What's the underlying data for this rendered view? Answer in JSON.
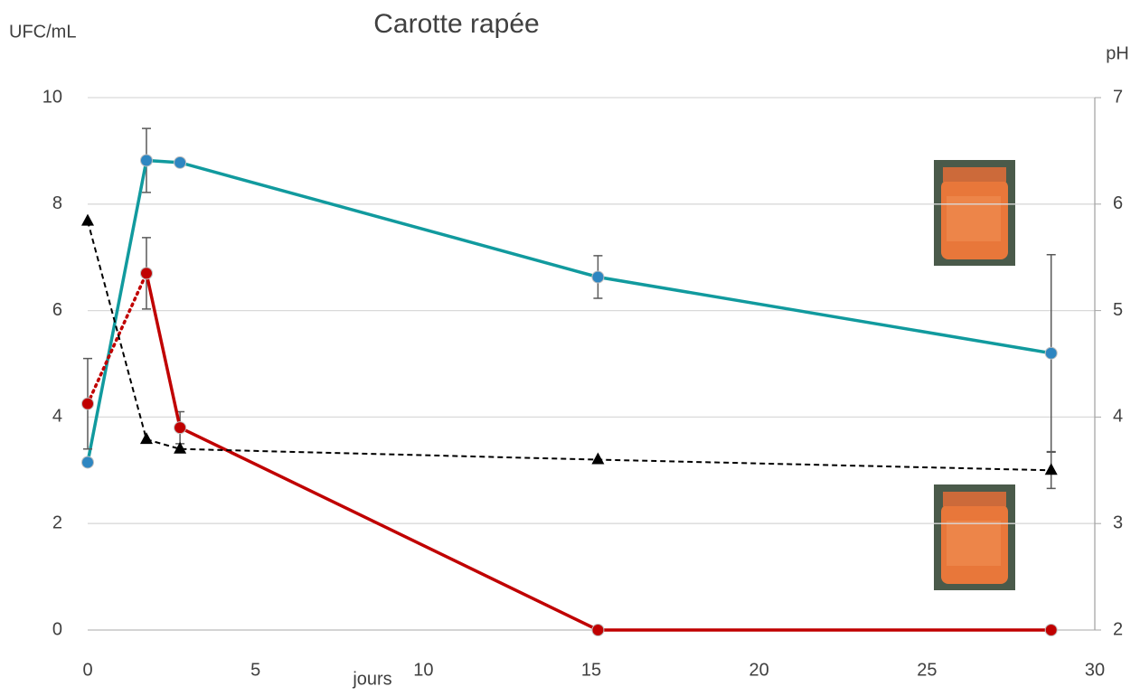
{
  "chart_data": {
    "type": "line",
    "title": "Carotte rapée",
    "y_label": "UFC/mL",
    "y2_label": "pH",
    "x_label": "jours",
    "xlim": [
      0,
      30
    ],
    "xticks": [
      0,
      5,
      10,
      15,
      20,
      25,
      30
    ],
    "ylim": [
      0,
      10
    ],
    "yticks": [
      0,
      2,
      4,
      6,
      8,
      10
    ],
    "y2lim": [
      2,
      7
    ],
    "y2ticks": [
      2,
      3,
      4,
      5,
      6,
      7
    ],
    "grid": true,
    "series": [
      {
        "color": "#119a9e",
        "marker_color": "#2e86c1",
        "style": "solid",
        "marker": "circle",
        "x": [
          0,
          1.75,
          2.75,
          15.2,
          28.7
        ],
        "values": [
          3.15,
          8.82,
          8.78,
          6.63,
          5.2
        ],
        "errors": [
          null,
          0.6,
          null,
          0.4,
          1.85
        ]
      },
      {
        "color": "#c00000",
        "marker_color": "#c00000",
        "style": "dotted",
        "marker": "circle",
        "x": [
          0,
          1.75
        ],
        "values": [
          4.25,
          6.7
        ],
        "errors": [
          0.85,
          null
        ]
      },
      {
        "color": "#c00000",
        "marker_color": "#c00000",
        "style": "solid",
        "marker": "circle",
        "x": [
          1.75,
          2.75,
          15.2,
          28.7
        ],
        "values": [
          6.7,
          3.8,
          0,
          0
        ],
        "errors": [
          0.67,
          0.3,
          null,
          null
        ]
      },
      {
        "color": "#000000",
        "marker_color": "#000000",
        "style": "dashed",
        "marker": "triangle",
        "axis": "y2",
        "x": [
          0,
          1.75,
          2.75,
          15.2,
          28.7
        ],
        "values": [
          5.84,
          3.79,
          3.7,
          3.6,
          3.5
        ],
        "errors": [
          null,
          null,
          null,
          null,
          0.17
        ]
      }
    ]
  }
}
